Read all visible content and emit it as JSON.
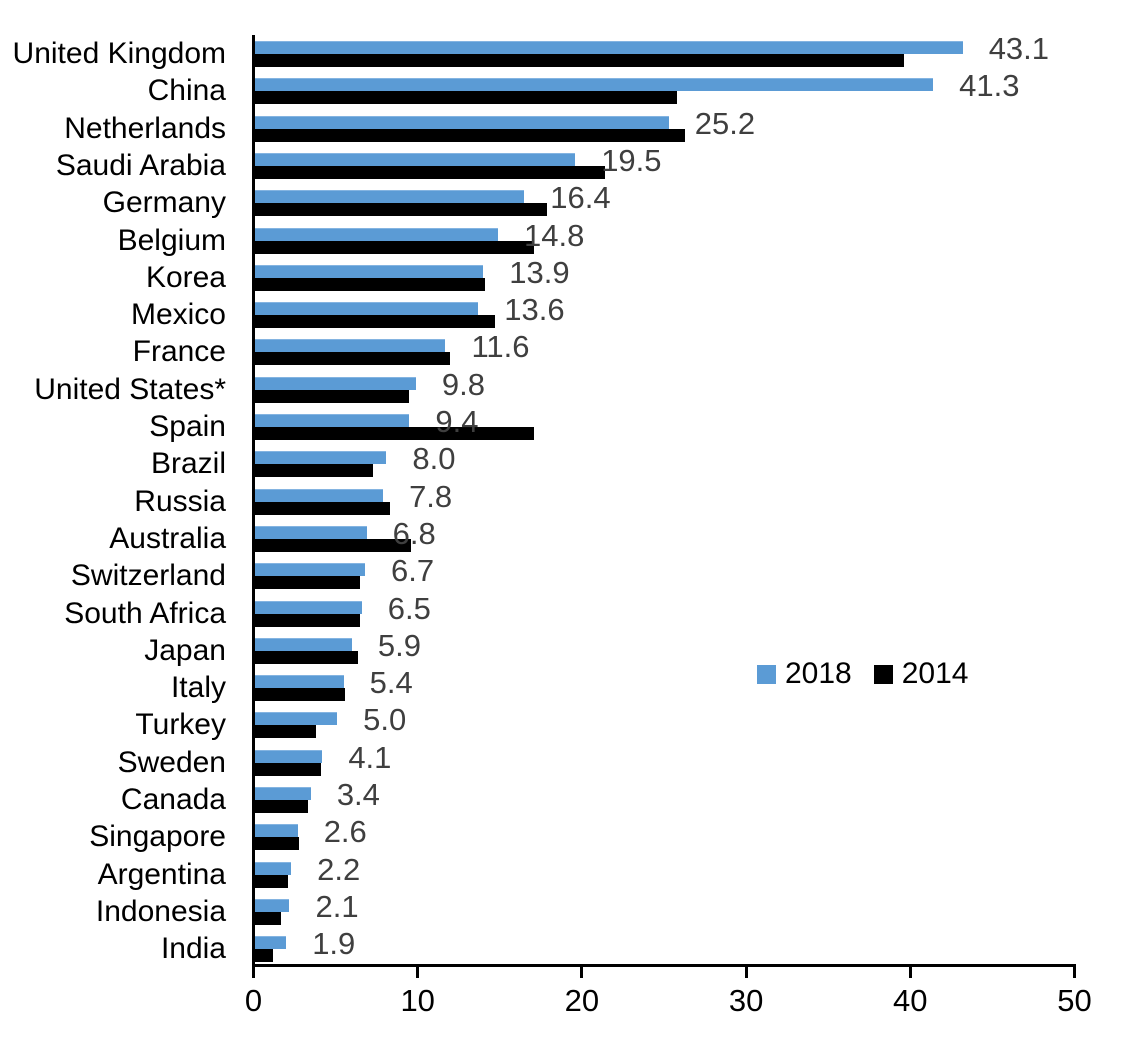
{
  "chart_data": {
    "type": "bar",
    "orientation": "horizontal",
    "title": "",
    "xlabel": "",
    "ylabel": "",
    "xlim": [
      0,
      50
    ],
    "x_ticks": [
      0,
      10,
      20,
      30,
      40,
      50
    ],
    "x_tick_labels": [
      "0",
      "10",
      "20",
      "30",
      "40",
      "50"
    ],
    "grid": false,
    "legend_position": "middle-right",
    "value_label_color": "#3f3f3f",
    "axis_color": "#000000",
    "categories": [
      "United Kingdom",
      "China",
      "Netherlands",
      "Saudi Arabia",
      "Germany",
      "Belgium",
      "Korea",
      "Mexico",
      "France",
      "United States*",
      "Spain",
      "Brazil",
      "Russia",
      "Australia",
      "Switzerland",
      "South Africa",
      "Japan",
      "Italy",
      "Turkey",
      "Sweden",
      "Canada",
      "Singapore",
      "Argentina",
      "Indonesia",
      "India"
    ],
    "series": [
      {
        "name": "2018",
        "color": "#5b9bd5",
        "values": [
          43.1,
          41.3,
          25.2,
          19.5,
          16.4,
          14.8,
          13.9,
          13.6,
          11.6,
          9.8,
          9.4,
          8.0,
          7.8,
          6.8,
          6.7,
          6.5,
          5.9,
          5.4,
          5.0,
          4.1,
          3.4,
          2.6,
          2.2,
          2.1,
          1.9
        ],
        "data_labels": [
          "43.1",
          "41.3",
          "25.2",
          "19.5",
          "16.4",
          "14.8",
          "13.9",
          "13.6",
          "11.6",
          "9.8",
          "9.4",
          "8.0",
          "7.8",
          "6.8",
          "6.7",
          "6.5",
          "5.9",
          "5.4",
          "5.0",
          "4.1",
          "3.4",
          "2.6",
          "2.2",
          "2.1",
          "1.9"
        ],
        "data_labels_shown": true
      },
      {
        "name": "2014",
        "color": "#000000",
        "values": [
          39.5,
          25.7,
          26.2,
          21.3,
          17.8,
          17.0,
          14.0,
          14.6,
          11.9,
          9.4,
          17.0,
          7.2,
          8.2,
          9.5,
          6.4,
          6.4,
          6.3,
          5.5,
          3.7,
          4.0,
          3.2,
          2.7,
          2.0,
          1.6,
          1.1
        ],
        "data_labels_shown": false
      }
    ]
  },
  "legend": {
    "items": [
      {
        "label": "2018",
        "color": "#5b9bd5"
      },
      {
        "label": "2014",
        "color": "#000000"
      }
    ]
  }
}
